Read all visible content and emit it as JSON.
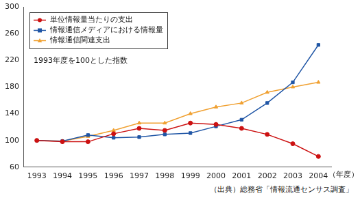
{
  "chart_data": {
    "type": "line",
    "categories": [
      "1993",
      "1994",
      "1995",
      "1996",
      "1997",
      "1998",
      "1999",
      "2000",
      "2001",
      "2002",
      "2003",
      "2004"
    ],
    "x_label": "（年度）",
    "annotations": [
      "1993年度を100とした指数"
    ],
    "source": "（出典）総務省「情報流通センサス調査」",
    "series": [
      {
        "name": "単位情報量当たりの支出",
        "color": "#cc1111",
        "marker": "circle",
        "values": [
          100,
          98,
          98,
          110,
          118,
          115,
          126,
          124,
          118,
          109,
          95,
          76
        ]
      },
      {
        "name": "情報通信メディアにおける情報量",
        "color": "#1f55a5",
        "marker": "square",
        "values": [
          100,
          99,
          108,
          104,
          105,
          109,
          111,
          121,
          131,
          156,
          187,
          243
        ]
      },
      {
        "name": "情報通信関連支出",
        "color": "#f0a030",
        "marker": "triangle",
        "values": [
          100,
          99,
          106,
          115,
          126,
          126,
          140,
          150,
          156,
          172,
          180,
          187
        ]
      }
    ],
    "ylim": [
      60,
      300
    ],
    "yticks": [
      60,
      100,
      140,
      180,
      220,
      260,
      300
    ],
    "grid": false,
    "legend": "upper left"
  }
}
